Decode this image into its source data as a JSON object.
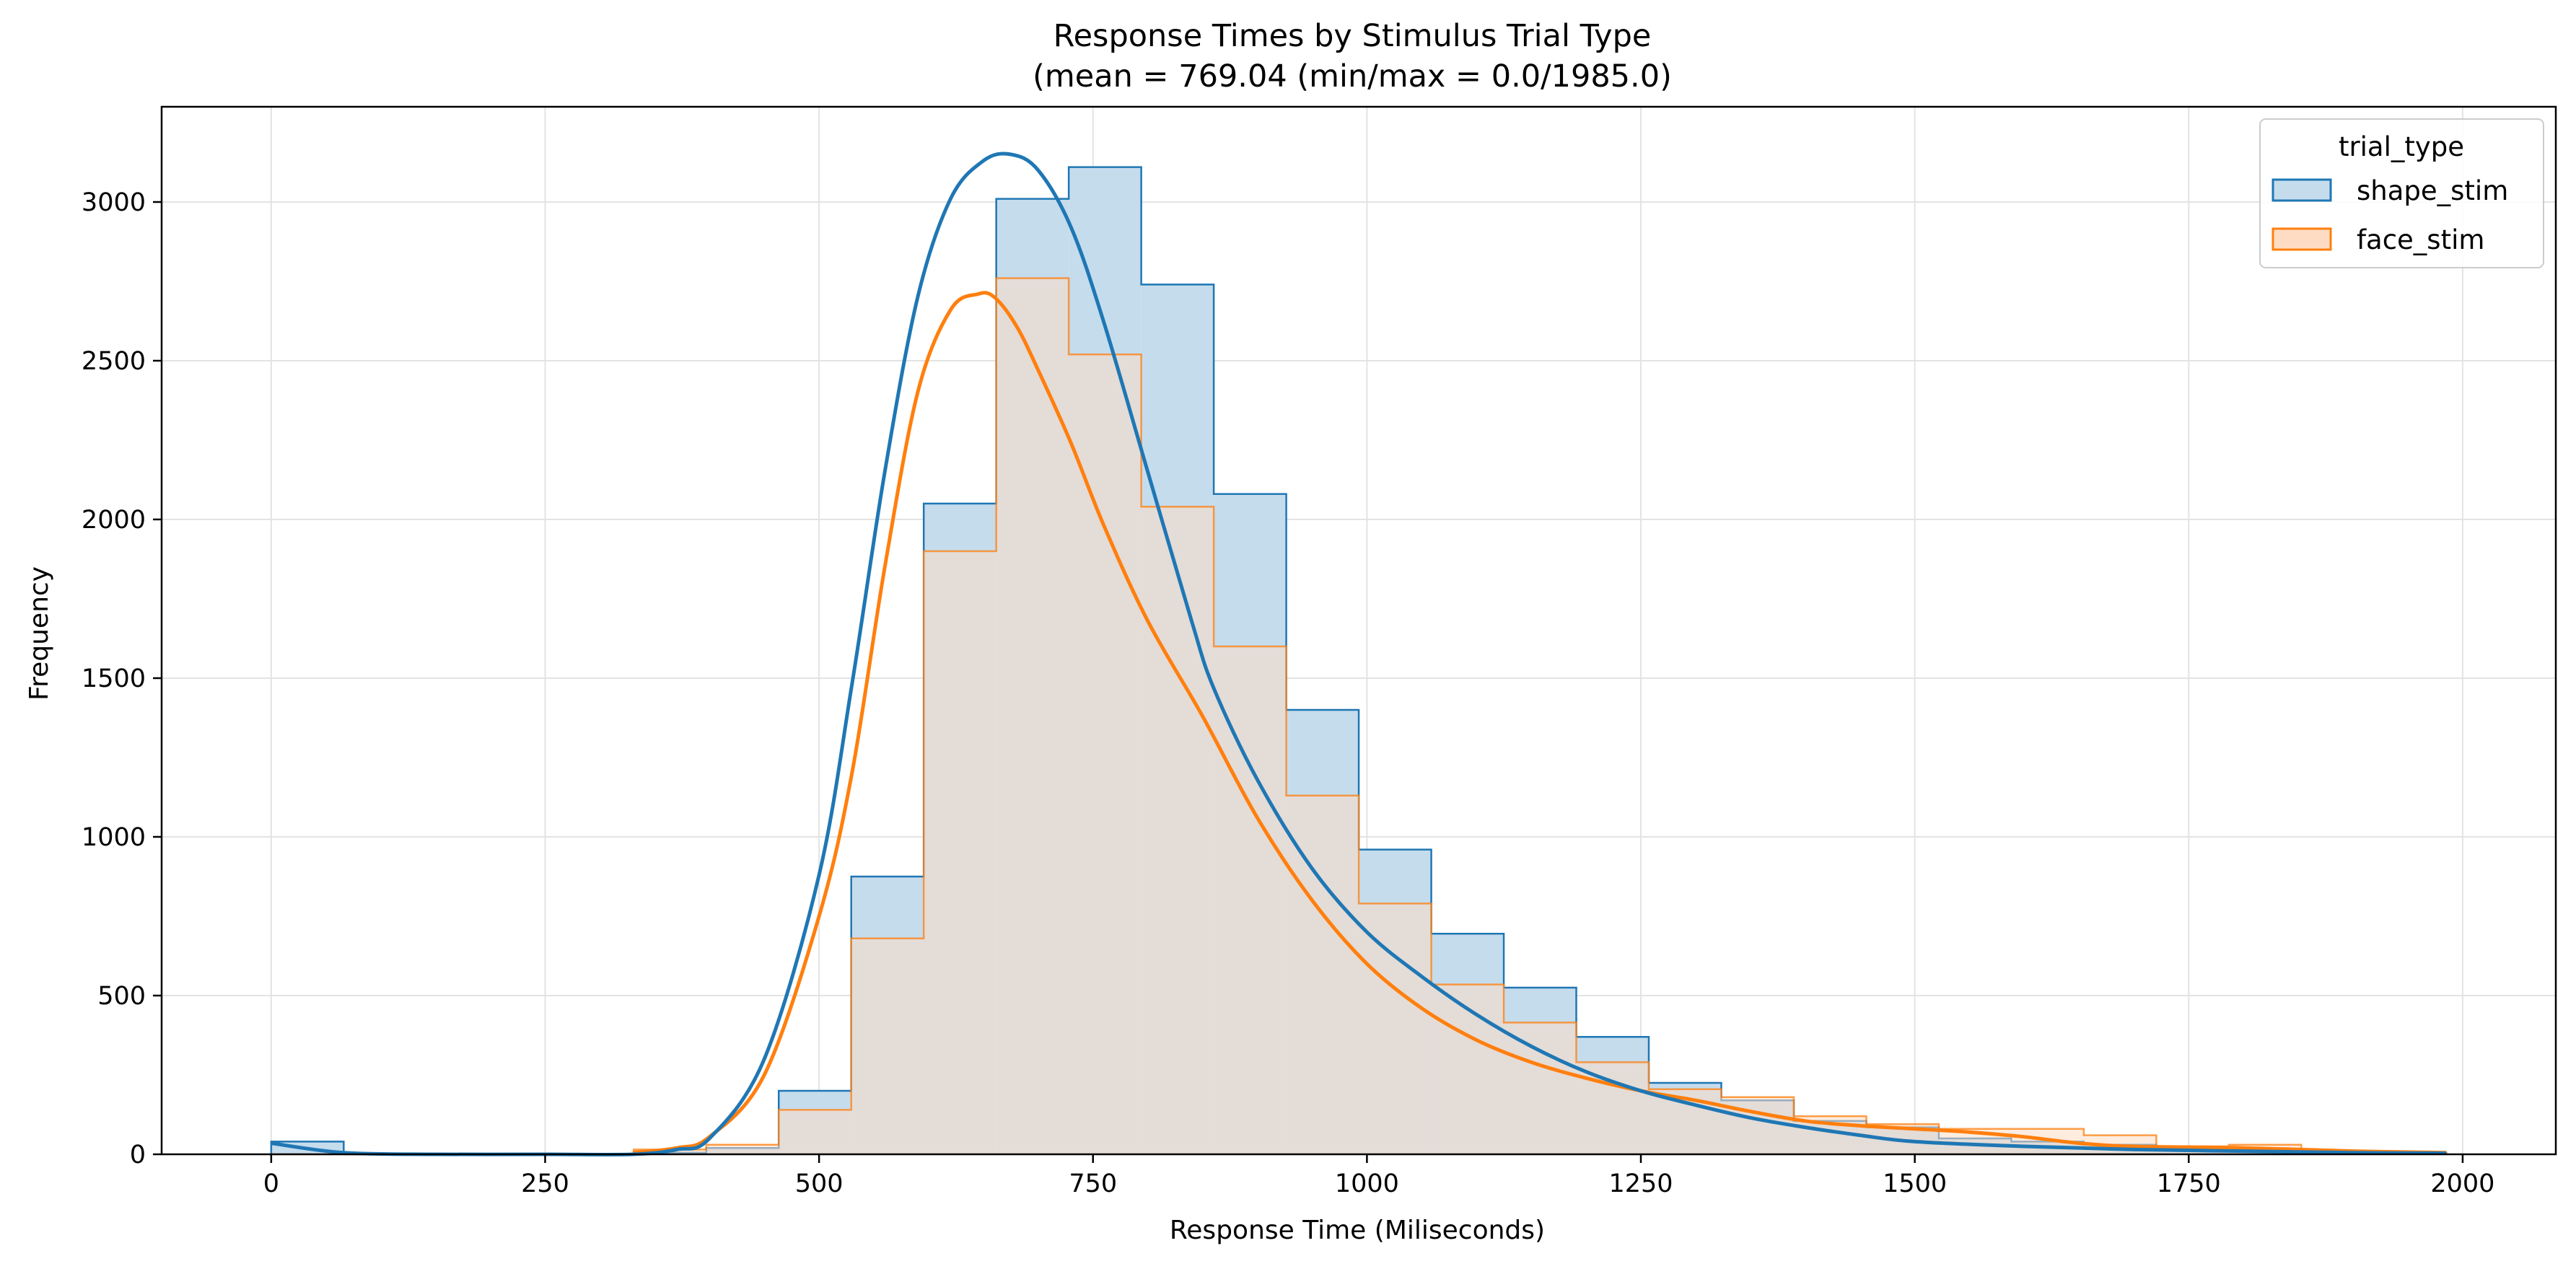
{
  "chart_data": {
    "type": "histogram",
    "title_line1": "Response Times by Stimulus Trial Type",
    "title_line2": "(mean = 769.04 (min/max = 0.0/1985.0)",
    "xlabel": "Response Time (Miliseconds)",
    "ylabel": "Frequency",
    "xlim": [
      -100,
      2085
    ],
    "ylim": [
      0,
      3300
    ],
    "xticks": [
      0,
      250,
      500,
      750,
      1000,
      1250,
      1500,
      1750,
      2000
    ],
    "yticks": [
      0,
      500,
      1000,
      1500,
      2000,
      2500,
      3000
    ],
    "grid": true,
    "bin_width": 66.17,
    "bin_start": 0,
    "legend": {
      "title": "trial_type",
      "position": "top-right",
      "entries": [
        "shape_stim",
        "face_stim"
      ]
    },
    "series": [
      {
        "name": "shape_stim",
        "color": "#1f77b4",
        "fill": "#c5dced",
        "values": [
          40,
          0,
          0,
          0,
          0,
          5,
          20,
          200,
          875,
          2050,
          3010,
          3110,
          2740,
          2080,
          1400,
          960,
          695,
          525,
          370,
          225,
          170,
          105,
          85,
          50,
          40,
          30,
          20,
          15,
          10,
          5
        ],
        "kde_x": [
          0,
          66,
          150,
          250,
          330,
          370,
          400,
          450,
          500,
          530,
          560,
          590,
          620,
          650,
          675,
          700,
          730,
          760,
          800,
          840,
          860,
          900,
          950,
          1000,
          1050,
          1100,
          1150,
          1200,
          1250,
          1300,
          1350,
          1400,
          1450,
          1500,
          1600,
          1700,
          1800,
          1900,
          1985
        ],
        "kde_y": [
          35,
          5,
          0,
          0,
          0,
          15,
          50,
          300,
          880,
          1480,
          2150,
          2700,
          3010,
          3130,
          3150,
          3100,
          2920,
          2620,
          2150,
          1680,
          1470,
          1180,
          900,
          700,
          560,
          440,
          340,
          260,
          200,
          155,
          115,
          85,
          60,
          40,
          25,
          15,
          10,
          5,
          3
        ]
      },
      {
        "name": "face_stim",
        "color": "#ff7f0e",
        "fill": "#fedcc4",
        "values": [
          0,
          0,
          0,
          0,
          0,
          15,
          30,
          140,
          680,
          1900,
          2760,
          2520,
          2040,
          1600,
          1130,
          790,
          535,
          415,
          290,
          205,
          180,
          120,
          95,
          80,
          80,
          60,
          25,
          30,
          10,
          5
        ],
        "kde_x": [
          330,
          370,
          400,
          450,
          500,
          530,
          560,
          590,
          620,
          645,
          660,
          680,
          700,
          730,
          760,
          800,
          850,
          900,
          950,
          1000,
          1050,
          1100,
          1150,
          1200,
          1250,
          1300,
          1350,
          1400,
          1450,
          1500,
          1550,
          1600,
          1650,
          1700,
          1800,
          1900,
          1985
        ],
        "kde_y": [
          5,
          20,
          55,
          250,
          750,
          1200,
          1850,
          2400,
          2660,
          2710,
          2700,
          2610,
          2470,
          2240,
          1980,
          1680,
          1380,
          1060,
          800,
          600,
          460,
          360,
          290,
          240,
          200,
          170,
          135,
          105,
          90,
          80,
          70,
          55,
          35,
          25,
          20,
          10,
          5
        ]
      }
    ]
  }
}
